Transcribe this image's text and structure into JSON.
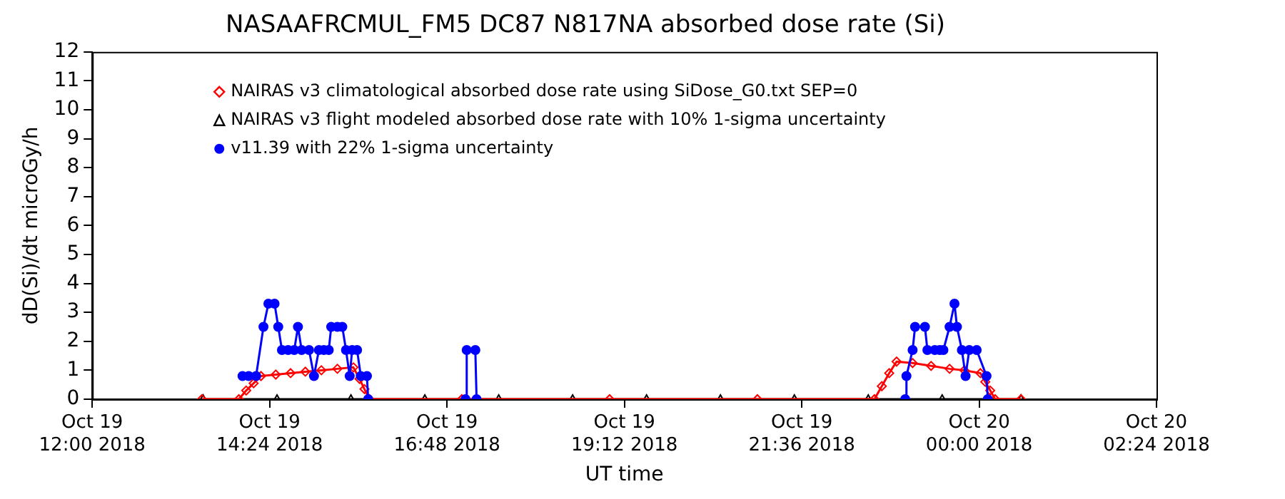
{
  "chart_data": {
    "type": "line",
    "title": "NASAAFRCMUL_FM5 DC87 N817NA absorbed dose rate (Si)",
    "xlabel": "UT time",
    "ylabel": "dD(Si)/dt microGy/h",
    "xlim": [
      "2018-10-19T12:00",
      "2018-10-20T02:24"
    ],
    "xticks": [
      {
        "value": "2018-10-19T12:00",
        "label": "Oct 19\n12:00 2018"
      },
      {
        "value": "2018-10-19T14:24",
        "label": "Oct 19\n14:24 2018"
      },
      {
        "value": "2018-10-19T16:48",
        "label": "Oct 19\n16:48 2018"
      },
      {
        "value": "2018-10-19T19:12",
        "label": "Oct 19\n19:12 2018"
      },
      {
        "value": "2018-10-19T21:36",
        "label": "Oct 19\n21:36 2018"
      },
      {
        "value": "2018-10-20T00:00",
        "label": "Oct 20\n00:00 2018"
      },
      {
        "value": "2018-10-20T02:24",
        "label": "Oct 20\n02:24 2018"
      }
    ],
    "ylim": [
      0,
      12
    ],
    "yticks": [
      0,
      1,
      2,
      3,
      4,
      5,
      6,
      7,
      8,
      9,
      10,
      11,
      12
    ],
    "grid": false,
    "legend": "top left",
    "line_style": "solid",
    "series": [
      {
        "name": "NAIRAS v3 flight modeled absorbed dose rate with 10% 1-sigma uncertainty",
        "color": "#000000",
        "marker": "triangle",
        "x": [
          "2018-10-19T13:30",
          "2018-10-19T14:30",
          "2018-10-19T15:30",
          "2018-10-19T16:30",
          "2018-10-19T17:30",
          "2018-10-19T18:30",
          "2018-10-19T19:30",
          "2018-10-19T20:30",
          "2018-10-19T21:30",
          "2018-10-19T22:30",
          "2018-10-19T23:30",
          "2018-10-20T00:34"
        ],
        "values": [
          0,
          0,
          0,
          0,
          0,
          0,
          0,
          0,
          0,
          0,
          0,
          0
        ]
      },
      {
        "name": "NAIRAS v3 climatological absorbed dose rate using SiDose_G0.txt SEP=0",
        "color": "#ff0000",
        "marker": "diamond",
        "x": [
          "2018-10-19T13:29",
          "2018-10-19T13:59",
          "2018-10-19T14:05",
          "2018-10-19T14:11",
          "2018-10-19T14:17",
          "2018-10-19T14:29",
          "2018-10-19T14:41",
          "2018-10-19T14:53",
          "2018-10-19T15:06",
          "2018-10-19T15:19",
          "2018-10-19T15:32",
          "2018-10-19T15:37",
          "2018-10-19T15:41",
          "2018-10-19T15:45",
          "2018-10-19T17:00",
          "2018-10-19T19:00",
          "2018-10-19T21:00",
          "2018-10-19T22:35",
          "2018-10-19T22:41",
          "2018-10-19T22:47",
          "2018-10-19T22:53",
          "2018-10-19T23:06",
          "2018-10-19T23:21",
          "2018-10-19T23:36",
          "2018-10-19T23:48",
          "2018-10-20T00:01",
          "2018-10-20T00:05",
          "2018-10-20T00:09",
          "2018-10-20T00:13",
          "2018-10-20T00:34"
        ],
        "values": [
          0,
          0,
          0.3,
          0.55,
          0.8,
          0.85,
          0.9,
          0.95,
          1.0,
          1.05,
          1.1,
          0.7,
          0.35,
          0,
          0,
          0,
          0,
          0,
          0.45,
          0.9,
          1.3,
          1.25,
          1.15,
          1.05,
          1.0,
          0.9,
          0.6,
          0.3,
          0,
          0
        ]
      },
      {
        "name": "v11.39 with 22% 1-sigma uncertainty",
        "color": "#0000ff",
        "marker": "circle",
        "x": [
          "2018-10-19T14:02",
          "2018-10-19T14:07",
          "2018-10-19T14:13",
          "2018-10-19T14:19",
          "2018-10-19T14:23",
          "2018-10-19T14:28",
          "2018-10-19T14:31",
          "2018-10-19T14:34",
          "2018-10-19T14:39",
          "2018-10-19T14:44",
          "2018-10-19T14:47",
          "2018-10-19T14:50",
          "2018-10-19T14:56",
          "2018-10-19T15:00",
          "2018-10-19T15:04",
          "2018-10-19T15:08",
          "2018-10-19T15:12",
          "2018-10-19T15:14",
          "2018-10-19T15:19",
          "2018-10-19T15:23",
          "2018-10-19T15:26",
          "2018-10-19T15:29",
          "2018-10-19T15:31",
          "2018-10-19T15:35",
          "2018-10-19T15:38",
          "2018-10-19T15:43",
          "2018-10-19T15:44",
          "2018-10-19T16:30",
          "2018-10-19T17:03",
          "2018-10-19T17:04",
          "2018-10-19T17:11",
          "2018-10-19T17:12",
          "2018-10-19T20:00",
          "2018-10-19T23:00",
          "2018-10-19T23:01",
          "2018-10-19T23:06",
          "2018-10-19T23:08",
          "2018-10-19T23:16",
          "2018-10-19T23:18",
          "2018-10-19T23:24",
          "2018-10-19T23:28",
          "2018-10-19T23:31",
          "2018-10-19T23:36",
          "2018-10-19T23:40",
          "2018-10-19T23:42",
          "2018-10-19T23:46",
          "2018-10-19T23:49",
          "2018-10-19T23:52",
          "2018-10-19T23:58",
          "2018-10-20T00:06",
          "2018-10-20T00:07"
        ],
        "values": [
          0.8,
          0.8,
          0.8,
          2.5,
          3.3,
          3.3,
          2.5,
          1.7,
          1.7,
          1.7,
          2.5,
          1.7,
          1.7,
          0.8,
          1.7,
          1.7,
          1.7,
          2.5,
          2.5,
          2.5,
          1.7,
          0.8,
          1.7,
          1.7,
          0.8,
          0.8,
          0,
          null,
          0,
          1.7,
          1.7,
          0,
          null,
          0,
          0.8,
          1.7,
          2.5,
          2.5,
          1.7,
          1.7,
          1.7,
          1.7,
          2.5,
          3.3,
          2.5,
          1.7,
          0.8,
          1.7,
          1.7,
          0.8,
          0
        ]
      }
    ]
  }
}
